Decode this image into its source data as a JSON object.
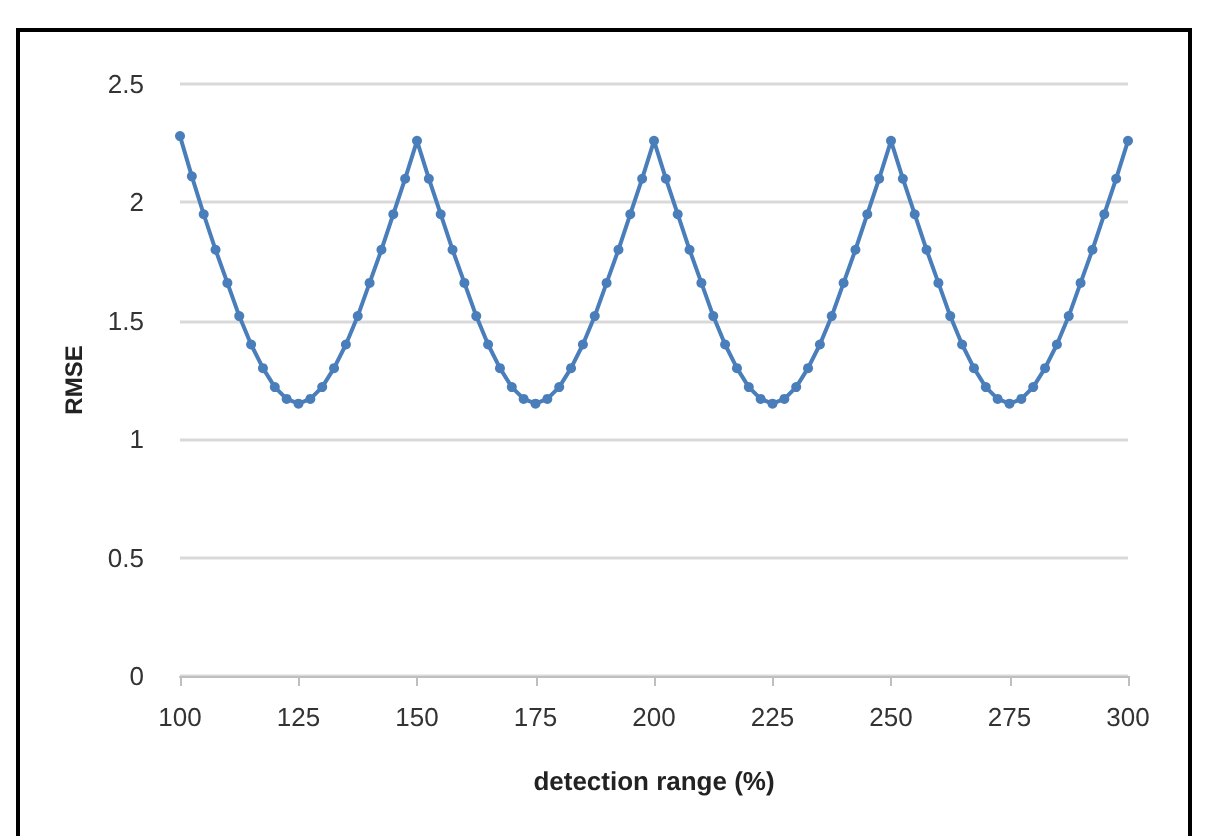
{
  "chart_data": {
    "type": "line",
    "xlabel": "detection range (%)",
    "ylabel": "RMSE",
    "xlim": [
      100,
      300
    ],
    "xticks": [
      100,
      125,
      150,
      175,
      200,
      225,
      250,
      275,
      300
    ],
    "ylim": [
      0,
      2.5
    ],
    "yticks": [
      0,
      0.5,
      1,
      1.5,
      2,
      2.5
    ],
    "grid": "y",
    "marker": "circle",
    "line_style": "solid",
    "series": [
      {
        "color": "#4a7ebb",
        "x": [
          100,
          102.5,
          105,
          107.5,
          110,
          112.5,
          115,
          117.5,
          120,
          122.5,
          125,
          127.5,
          130,
          132.5,
          135,
          137.5,
          140,
          142.5,
          145,
          147.5,
          150,
          152.5,
          155,
          157.5,
          160,
          162.5,
          165,
          167.5,
          170,
          172.5,
          175,
          177.5,
          180,
          182.5,
          185,
          187.5,
          190,
          192.5,
          195,
          197.5,
          200,
          202.5,
          205,
          207.5,
          210,
          212.5,
          215,
          217.5,
          220,
          222.5,
          225,
          227.5,
          230,
          232.5,
          235,
          237.5,
          240,
          242.5,
          245,
          247.5,
          250,
          252.5,
          255,
          257.5,
          260,
          262.5,
          265,
          267.5,
          270,
          272.5,
          275,
          277.5,
          280,
          282.5,
          285,
          287.5,
          290,
          292.5,
          295,
          297.5,
          300
        ],
        "values": [
          2.28,
          2.11,
          1.95,
          1.8,
          1.66,
          1.52,
          1.4,
          1.3,
          1.22,
          1.17,
          1.15,
          1.17,
          1.22,
          1.3,
          1.4,
          1.52,
          1.66,
          1.8,
          1.95,
          2.1,
          2.26,
          2.1,
          1.95,
          1.8,
          1.66,
          1.52,
          1.4,
          1.3,
          1.22,
          1.17,
          1.15,
          1.17,
          1.22,
          1.3,
          1.4,
          1.52,
          1.66,
          1.8,
          1.95,
          2.1,
          2.26,
          2.1,
          1.95,
          1.8,
          1.66,
          1.52,
          1.4,
          1.3,
          1.22,
          1.17,
          1.15,
          1.17,
          1.22,
          1.3,
          1.4,
          1.52,
          1.66,
          1.8,
          1.95,
          2.1,
          2.26,
          2.1,
          1.95,
          1.8,
          1.66,
          1.52,
          1.4,
          1.3,
          1.22,
          1.17,
          1.15,
          1.17,
          1.22,
          1.3,
          1.4,
          1.52,
          1.66,
          1.8,
          1.95,
          2.1,
          2.26
        ]
      }
    ]
  }
}
